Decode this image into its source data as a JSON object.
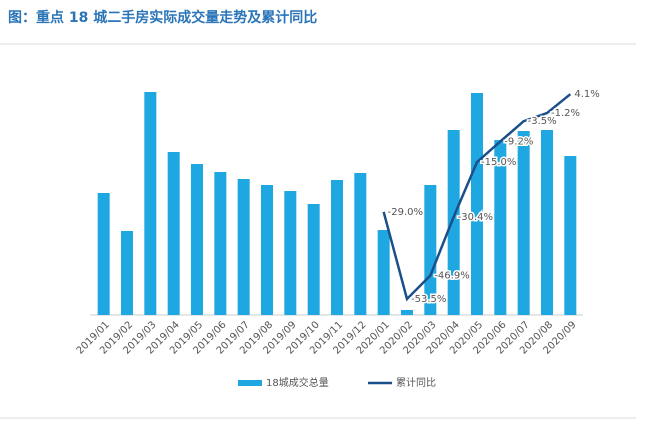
{
  "chart_data": {
    "type": "bar_line",
    "title": "图：重点 18 城二手房实际成交量走势及累计同比",
    "categories": [
      "2019/01",
      "2019/02",
      "2019/03",
      "2019/04",
      "2019/05",
      "2019/06",
      "2019/07",
      "2019/08",
      "2019/09",
      "2019/10",
      "2019/11",
      "2019/12",
      "2020/01",
      "2020/02",
      "2020/03",
      "2020/04",
      "2020/05",
      "2020/06",
      "2020/07",
      "2020/08",
      "2020/09"
    ],
    "series": [
      {
        "name": "18城成交总量",
        "color": "#1ea7e1",
        "values": [
          122,
          84,
          223,
          163,
          151,
          143,
          136,
          130,
          124,
          111,
          135,
          142,
          85,
          5,
          130,
          185,
          222,
          175,
          184,
          185,
          159
        ]
      },
      {
        "name": "累计同比",
        "color": "#1b4f8a",
        "axis": "y2",
        "values": [
          null,
          null,
          null,
          null,
          null,
          null,
          null,
          null,
          null,
          null,
          null,
          null,
          -29.0,
          -53.5,
          -46.9,
          -30.4,
          -15.0,
          -9.2,
          -3.5,
          -1.2,
          4.1
        ],
        "value_labels": [
          null,
          null,
          null,
          null,
          null,
          null,
          null,
          null,
          null,
          null,
          null,
          null,
          "-29.0%",
          "-53.5%",
          "-46.9%",
          "-30.4%",
          "-15.0%",
          "-9.2%",
          "-3.5%",
          "-1.2%",
          "4.1%"
        ]
      }
    ],
    "ylim": [
      0,
      240
    ],
    "y2lim": [
      -58,
      9.5
    ]
  }
}
